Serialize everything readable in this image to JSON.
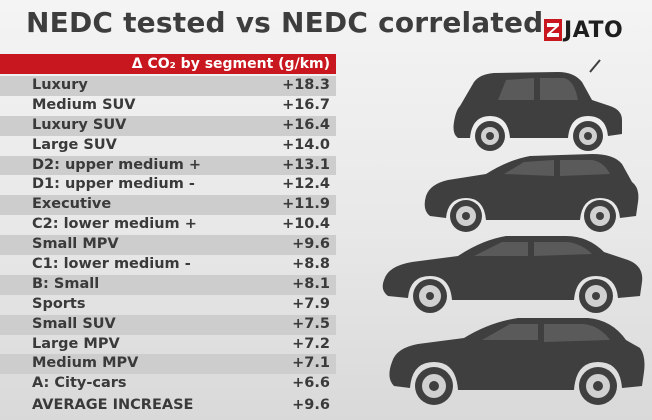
{
  "title": "NEDC tested vs NEDC correlated",
  "logo": "JATO",
  "colors": {
    "accent": "#c8171e",
    "car": "#3f3f3f",
    "stripe": "#cdcdcd"
  },
  "chart_data": {
    "type": "table",
    "header": "Δ CO₂ by segment (g/km)",
    "rows": [
      {
        "segment": "Luxury",
        "value": "+18.3"
      },
      {
        "segment": "Medium SUV",
        "value": "+16.7"
      },
      {
        "segment": "Luxury SUV",
        "value": "+16.4"
      },
      {
        "segment": "Large SUV",
        "value": "+14.0"
      },
      {
        "segment": "D2: upper medium +",
        "value": "+13.1"
      },
      {
        "segment": "D1: upper medium -",
        "value": "+12.4"
      },
      {
        "segment": "Executive",
        "value": "+11.9"
      },
      {
        "segment": "C2: lower medium +",
        "value": "+10.4"
      },
      {
        "segment": "Small MPV",
        "value": "+9.6"
      },
      {
        "segment": "C1: lower medium -",
        "value": "+8.8"
      },
      {
        "segment": "B: Small",
        "value": "+8.1"
      },
      {
        "segment": "Sports",
        "value": "+7.9"
      },
      {
        "segment": "Small SUV",
        "value": "+7.5"
      },
      {
        "segment": "Large MPV",
        "value": "+7.2"
      },
      {
        "segment": "Medium MPV",
        "value": "+7.1"
      },
      {
        "segment": "A: City-cars",
        "value": "+6.6"
      }
    ],
    "total": {
      "segment": "AVERAGE INCREASE",
      "value": "+9.6"
    }
  }
}
